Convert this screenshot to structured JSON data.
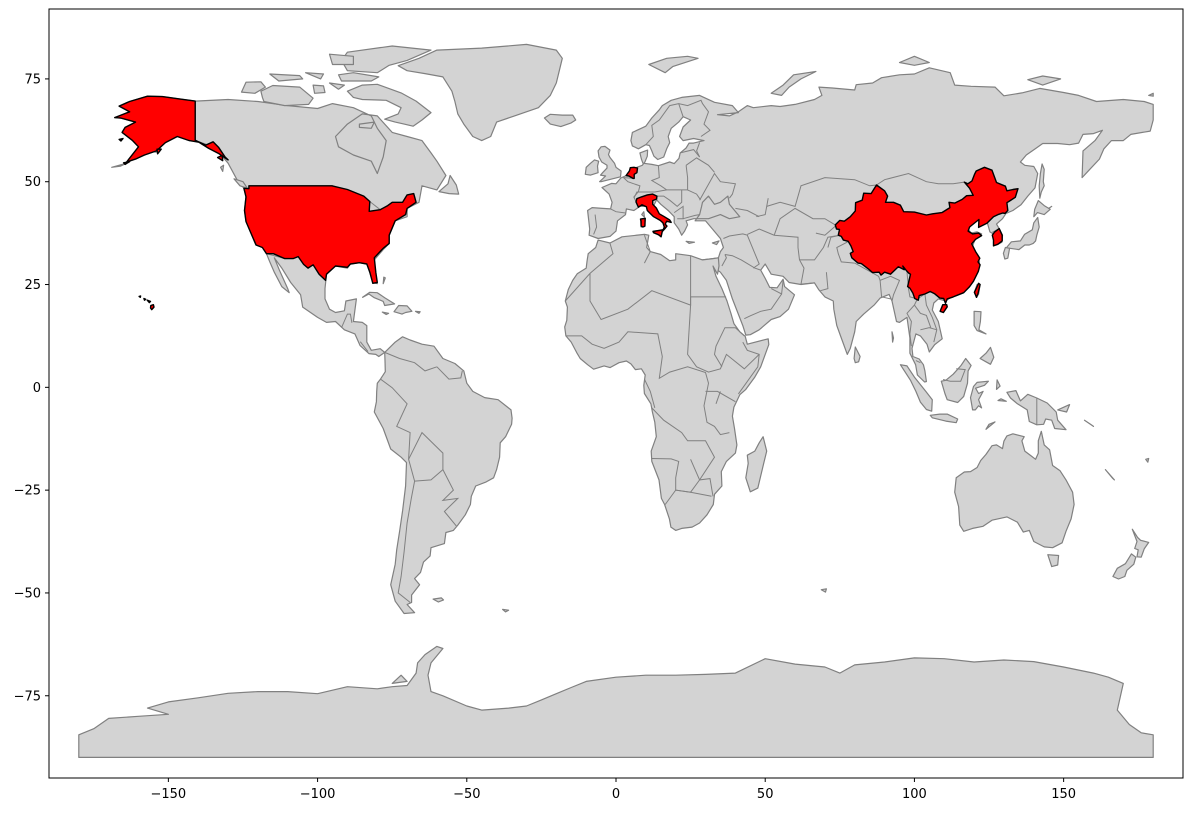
{
  "map": {
    "type": "choropleth-highlight",
    "projection": "plate-carree",
    "xlim": [
      -190,
      190
    ],
    "ylim": [
      -95,
      92
    ],
    "colors": {
      "base": "#d3d3d3",
      "border": "#808080",
      "highlight": "#ff0000",
      "highlight_edge": "#000000"
    },
    "highlighted_countries": [
      "United States of America",
      "Netherlands",
      "Italy",
      "China",
      "Taiwan",
      "South Korea"
    ],
    "xticks": [
      -150,
      -100,
      -50,
      0,
      50,
      100,
      150
    ],
    "yticks": [
      75,
      50,
      25,
      0,
      -25,
      -50,
      -75
    ],
    "xtick_labels": [
      "−150",
      "−100",
      "−50",
      "0",
      "50",
      "100",
      "150"
    ],
    "ytick_labels": [
      "75",
      "50",
      "25",
      "0",
      "−25",
      "−50",
      "−75"
    ]
  }
}
